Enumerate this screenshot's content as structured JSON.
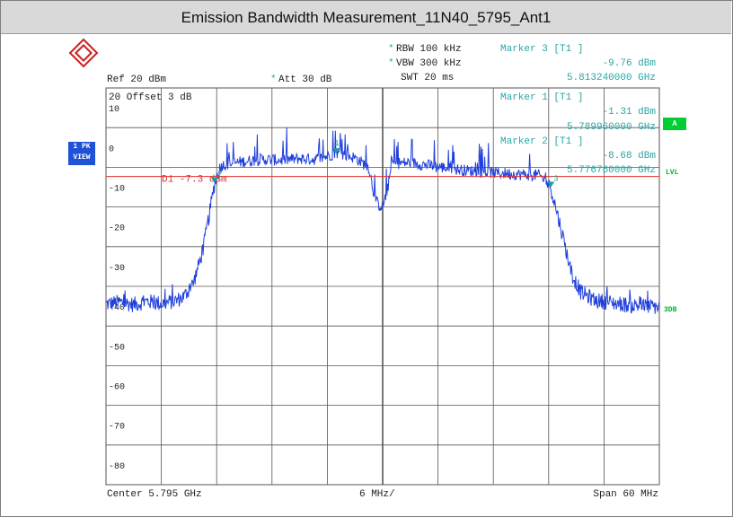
{
  "window": {
    "title": "Emission Bandwidth Measurement_11N40_5795_Ant1"
  },
  "header": {
    "rbw_star": "*",
    "rbw": "RBW 100 kHz",
    "vbw_star": "*",
    "vbw": "VBW 300 kHz",
    "swt": "SWT 20 ms",
    "ref": "Ref  20 dBm",
    "att_star": "*",
    "att": "Att  30 dB",
    "offset": "20 Offset  3 dB"
  },
  "markers": [
    {
      "title": "Marker 3 [T1 ]",
      "level": "-9.76 dBm",
      "freq": "5.813240000 GHz"
    },
    {
      "title": "Marker 1 [T1 ]",
      "level": "-1.31 dBm",
      "freq": "5.789960000 GHz"
    },
    {
      "title": "Marker 2 [T1 ]",
      "level": "-8.68 dBm",
      "freq": "5.776760000 GHz"
    }
  ],
  "side": {
    "trace_label_1": "1 PK",
    "trace_label_2": "VIEW",
    "right_a": "A",
    "right_lvl": "LVL",
    "right_3db": "3DB"
  },
  "colors": {
    "trace": "#1f3fdc",
    "grid": "#555555",
    "display_line": "#e03030",
    "marker": "#18a0a0",
    "annotation_text": "#2aa6a6"
  },
  "chart_data": {
    "type": "line",
    "x_unit": "GHz",
    "y_unit": "dBm",
    "xlim": [
      5.765,
      5.825
    ],
    "ylim": [
      -85,
      15
    ],
    "grid": true,
    "ytick_labels": [
      "20",
      "10",
      "0",
      "-10",
      "-20",
      "-30",
      "-40",
      "-50",
      "-60",
      "-70",
      "-80"
    ],
    "x_left_label": "Center 5.795 GHz",
    "x_center_label": "6 MHz/",
    "x_right_label": "Span 60 MHz",
    "display_line": {
      "label": "D1  -7.3 dBm",
      "value": -7.3
    },
    "series": [
      {
        "points": [
          [
            5.765,
            -39.5
          ],
          [
            5.7665,
            -39.0
          ],
          [
            5.768,
            -39.6
          ],
          [
            5.7695,
            -38.8
          ],
          [
            5.771,
            -39.4
          ],
          [
            5.7725,
            -38.7
          ],
          [
            5.7735,
            -37.5
          ],
          [
            5.7745,
            -34.0
          ],
          [
            5.7755,
            -26.0
          ],
          [
            5.7762,
            -17.0
          ],
          [
            5.7768,
            -8.7
          ],
          [
            5.7775,
            -4.5
          ],
          [
            5.78,
            -3.5
          ],
          [
            5.782,
            -3.0
          ],
          [
            5.784,
            -3.2
          ],
          [
            5.786,
            -2.8
          ],
          [
            5.788,
            -3.0
          ],
          [
            5.79,
            -1.3
          ],
          [
            5.792,
            -2.6
          ],
          [
            5.7935,
            -5.0
          ],
          [
            5.794,
            -11.0
          ],
          [
            5.7945,
            -14.5
          ],
          [
            5.795,
            -14.8
          ],
          [
            5.7955,
            -11.0
          ],
          [
            5.796,
            -4.0
          ],
          [
            5.798,
            -3.8
          ],
          [
            5.8,
            -4.5
          ],
          [
            5.802,
            -5.2
          ],
          [
            5.804,
            -5.8
          ],
          [
            5.806,
            -6.2
          ],
          [
            5.808,
            -6.5
          ],
          [
            5.81,
            -6.8
          ],
          [
            5.812,
            -7.0
          ],
          [
            5.8132,
            -9.8
          ],
          [
            5.8145,
            -22.0
          ],
          [
            5.8155,
            -32.0
          ],
          [
            5.8165,
            -36.5
          ],
          [
            5.818,
            -38.5
          ],
          [
            5.82,
            -39.2
          ],
          [
            5.822,
            -39.8
          ],
          [
            5.825,
            -40.2
          ]
        ]
      }
    ],
    "marker_points": [
      {
        "label": "1",
        "x": 5.78996,
        "y": -1.31
      },
      {
        "label": "2",
        "x": 5.77676,
        "y": -8.68
      },
      {
        "label": "3",
        "x": 5.81324,
        "y": -9.76
      }
    ]
  }
}
